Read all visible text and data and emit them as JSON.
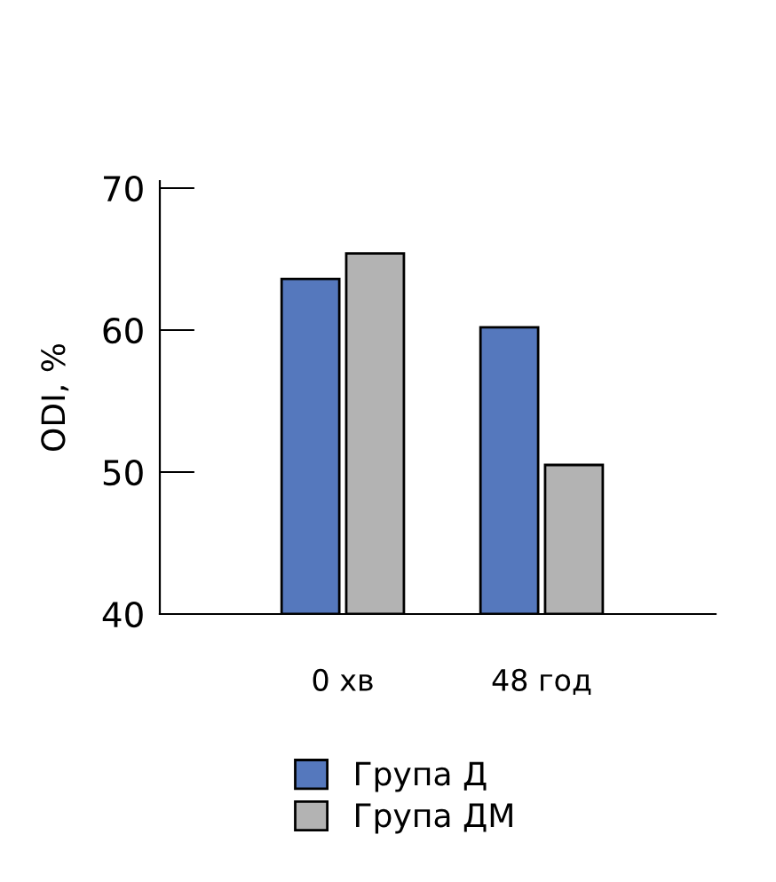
{
  "chart_data": {
    "type": "bar",
    "ylabel": "ODI, %",
    "categories": [
      "0 хв",
      "48 год"
    ],
    "series": [
      {
        "name": "Група Д",
        "color": "#5578bd",
        "values": [
          63.6,
          60.2
        ]
      },
      {
        "name": "Група ДМ",
        "color": "#b3b3b3",
        "values": [
          65.4,
          50.5
        ]
      }
    ],
    "ylim": [
      40,
      70.5
    ],
    "yticks": [
      40,
      50,
      60,
      70
    ],
    "grid": false,
    "legend": "bottom"
  }
}
